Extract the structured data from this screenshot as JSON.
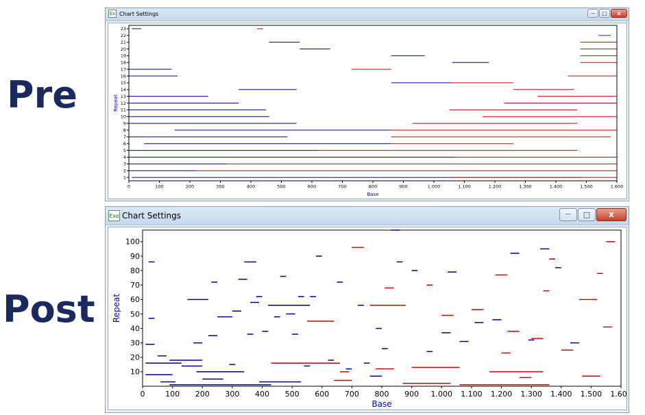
{
  "labels": {
    "pre": "Pre",
    "post": "Post"
  },
  "windows": [
    {
      "title": "Chart Settings",
      "icon": "Ex",
      "min": "—",
      "max": "□",
      "close": "x"
    },
    {
      "title": "Chart Settings",
      "icon": "Exe",
      "min": "—",
      "max": "□",
      "close": "x"
    }
  ],
  "colors": {
    "blue": "#00008b",
    "red": "#cc0000",
    "axisLabel": "#0000cc"
  },
  "chart_data": [
    {
      "type": "scatter",
      "mark": "horizontal-segment",
      "xlabel": "Base",
      "ylabel": "Repeat",
      "xlim": [
        0,
        1600
      ],
      "ylim": [
        0.5,
        23.5
      ],
      "xticks": [
        "0",
        "100",
        "200",
        "300",
        "400",
        "500",
        "600",
        "700",
        "800",
        "900",
        "1.000",
        "1.100",
        "1.200",
        "1.300",
        "1.400",
        "1.500",
        "1.600"
      ],
      "yticks": [
        "1",
        "2",
        "3",
        "4",
        "5",
        "6",
        "7",
        "8",
        "9",
        "10",
        "11",
        "12",
        "13",
        "14",
        "15",
        "16",
        "17",
        "18",
        "19",
        "20",
        "21",
        "22",
        "23"
      ],
      "series": [
        {
          "color": "blue",
          "segments": [
            [
              10,
              1485,
              1
            ],
            [
              0,
              220,
              2
            ],
            [
              0,
              320,
              3
            ],
            [
              0,
              1070,
              4
            ],
            [
              0,
              620,
              5
            ],
            [
              50,
              860,
              6
            ],
            [
              0,
              520,
              7
            ],
            [
              150,
              860,
              8
            ],
            [
              0,
              550,
              9
            ],
            [
              0,
              460,
              10
            ],
            [
              0,
              450,
              11
            ],
            [
              0,
              360,
              12
            ],
            [
              0,
              260,
              13
            ],
            [
              360,
              550,
              14
            ],
            [
              0,
              160,
              16
            ],
            [
              0,
              140,
              17
            ],
            [
              860,
              970,
              19
            ],
            [
              560,
              660,
              20
            ],
            [
              460,
              560,
              21
            ],
            [
              10,
              40,
              23
            ],
            [
              860,
              1060,
              15
            ],
            [
              1060,
              1180,
              18
            ]
          ]
        },
        {
          "color": "red",
          "segments": [
            [
              1060,
              1600,
              1
            ],
            [
              220,
              1600,
              2
            ],
            [
              320,
              1600,
              3
            ],
            [
              1070,
              1600,
              4
            ],
            [
              620,
              1470,
              5
            ],
            [
              860,
              1260,
              6
            ],
            [
              860,
              1580,
              7
            ],
            [
              860,
              1600,
              8
            ],
            [
              930,
              1470,
              9
            ],
            [
              1160,
              1600,
              10
            ],
            [
              1050,
              1470,
              11
            ],
            [
              1230,
              1600,
              12
            ],
            [
              1340,
              1600,
              13
            ],
            [
              1260,
              1460,
              14
            ],
            [
              1060,
              1260,
              15
            ],
            [
              1440,
              1600,
              16
            ],
            [
              730,
              860,
              17
            ],
            [
              1480,
              1600,
              18
            ],
            [
              1480,
              1600,
              19
            ],
            [
              1480,
              1600,
              20
            ],
            [
              1480,
              1600,
              21
            ],
            [
              1540,
              1580,
              22
            ],
            [
              420,
              440,
              23
            ]
          ]
        }
      ]
    },
    {
      "type": "scatter",
      "mark": "horizontal-segment",
      "xlabel": "Base",
      "ylabel": "Repeat",
      "xlim": [
        0,
        1600
      ],
      "ylim": [
        0,
        108
      ],
      "xticks": [
        "0",
        "100",
        "200",
        "300",
        "400",
        "500",
        "600",
        "700",
        "800",
        "900",
        "1.000",
        "1.100",
        "1.200",
        "1.300",
        "1.400",
        "1.500",
        "1.600"
      ],
      "yticks": [
        "10",
        "20",
        "30",
        "40",
        "50",
        "60",
        "70",
        "80",
        "90",
        "100"
      ],
      "series": [
        {
          "color": "blue",
          "segments": [
            [
              20,
              40,
              86
            ],
            [
              20,
              40,
              47
            ],
            [
              10,
              40,
              29
            ],
            [
              10,
              130,
              16
            ],
            [
              10,
              100,
              8
            ],
            [
              50,
              80,
              21
            ],
            [
              60,
              110,
              3
            ],
            [
              90,
              430,
              1
            ],
            [
              90,
              200,
              18
            ],
            [
              130,
              200,
              14
            ],
            [
              150,
              220,
              60
            ],
            [
              170,
              200,
              30
            ],
            [
              180,
              340,
              10
            ],
            [
              200,
              270,
              5
            ],
            [
              220,
              250,
              35
            ],
            [
              230,
              250,
              72
            ],
            [
              250,
              300,
              48
            ],
            [
              290,
              310,
              15
            ],
            [
              300,
              330,
              52
            ],
            [
              320,
              350,
              74
            ],
            [
              340,
              380,
              86
            ],
            [
              350,
              370,
              36
            ],
            [
              360,
              390,
              58
            ],
            [
              380,
              400,
              62
            ],
            [
              390,
              530,
              3
            ],
            [
              400,
              420,
              38
            ],
            [
              420,
              560,
              56
            ],
            [
              440,
              460,
              48
            ],
            [
              460,
              480,
              76
            ],
            [
              480,
              510,
              50
            ],
            [
              500,
              520,
              36
            ],
            [
              520,
              540,
              62
            ],
            [
              540,
              560,
              14
            ],
            [
              560,
              580,
              62
            ],
            [
              580,
              600,
              90
            ],
            [
              620,
              640,
              18
            ],
            [
              650,
              670,
              72
            ],
            [
              680,
              700,
              12
            ],
            [
              720,
              740,
              56
            ],
            [
              740,
              760,
              16
            ],
            [
              760,
              800,
              7
            ],
            [
              780,
              800,
              40
            ],
            [
              800,
              820,
              26
            ],
            [
              830,
              860,
              108
            ],
            [
              850,
              870,
              86
            ],
            [
              900,
              920,
              80
            ],
            [
              950,
              970,
              24
            ],
            [
              1000,
              1030,
              37
            ],
            [
              1020,
              1050,
              79
            ],
            [
              1060,
              1090,
              31
            ],
            [
              1110,
              1140,
              44
            ],
            [
              1170,
              1200,
              46
            ],
            [
              1230,
              1260,
              92
            ],
            [
              1290,
              1310,
              32
            ],
            [
              1330,
              1360,
              95
            ],
            [
              1380,
              1400,
              82
            ],
            [
              1430,
              1460,
              30
            ]
          ]
        },
        {
          "color": "red",
          "segments": [
            [
              430,
              660,
              16
            ],
            [
              550,
              640,
              45
            ],
            [
              640,
              700,
              4
            ],
            [
              660,
              690,
              10
            ],
            [
              700,
              740,
              96
            ],
            [
              760,
              880,
              56
            ],
            [
              780,
              840,
              12
            ],
            [
              810,
              840,
              68
            ],
            [
              870,
              1030,
              2
            ],
            [
              900,
              1060,
              13
            ],
            [
              950,
              970,
              70
            ],
            [
              1000,
              1040,
              49
            ],
            [
              1060,
              1360,
              1
            ],
            [
              1100,
              1140,
              53
            ],
            [
              1160,
              1340,
              10
            ],
            [
              1180,
              1220,
              77
            ],
            [
              1200,
              1230,
              23
            ],
            [
              1220,
              1260,
              38
            ],
            [
              1260,
              1300,
              6
            ],
            [
              1300,
              1340,
              33
            ],
            [
              1340,
              1360,
              66
            ],
            [
              1360,
              1380,
              88
            ],
            [
              1400,
              1440,
              25
            ],
            [
              1460,
              1520,
              60
            ],
            [
              1470,
              1530,
              7
            ],
            [
              1520,
              1540,
              78
            ],
            [
              1540,
              1570,
              41
            ],
            [
              1550,
              1580,
              100
            ]
          ]
        }
      ]
    }
  ]
}
